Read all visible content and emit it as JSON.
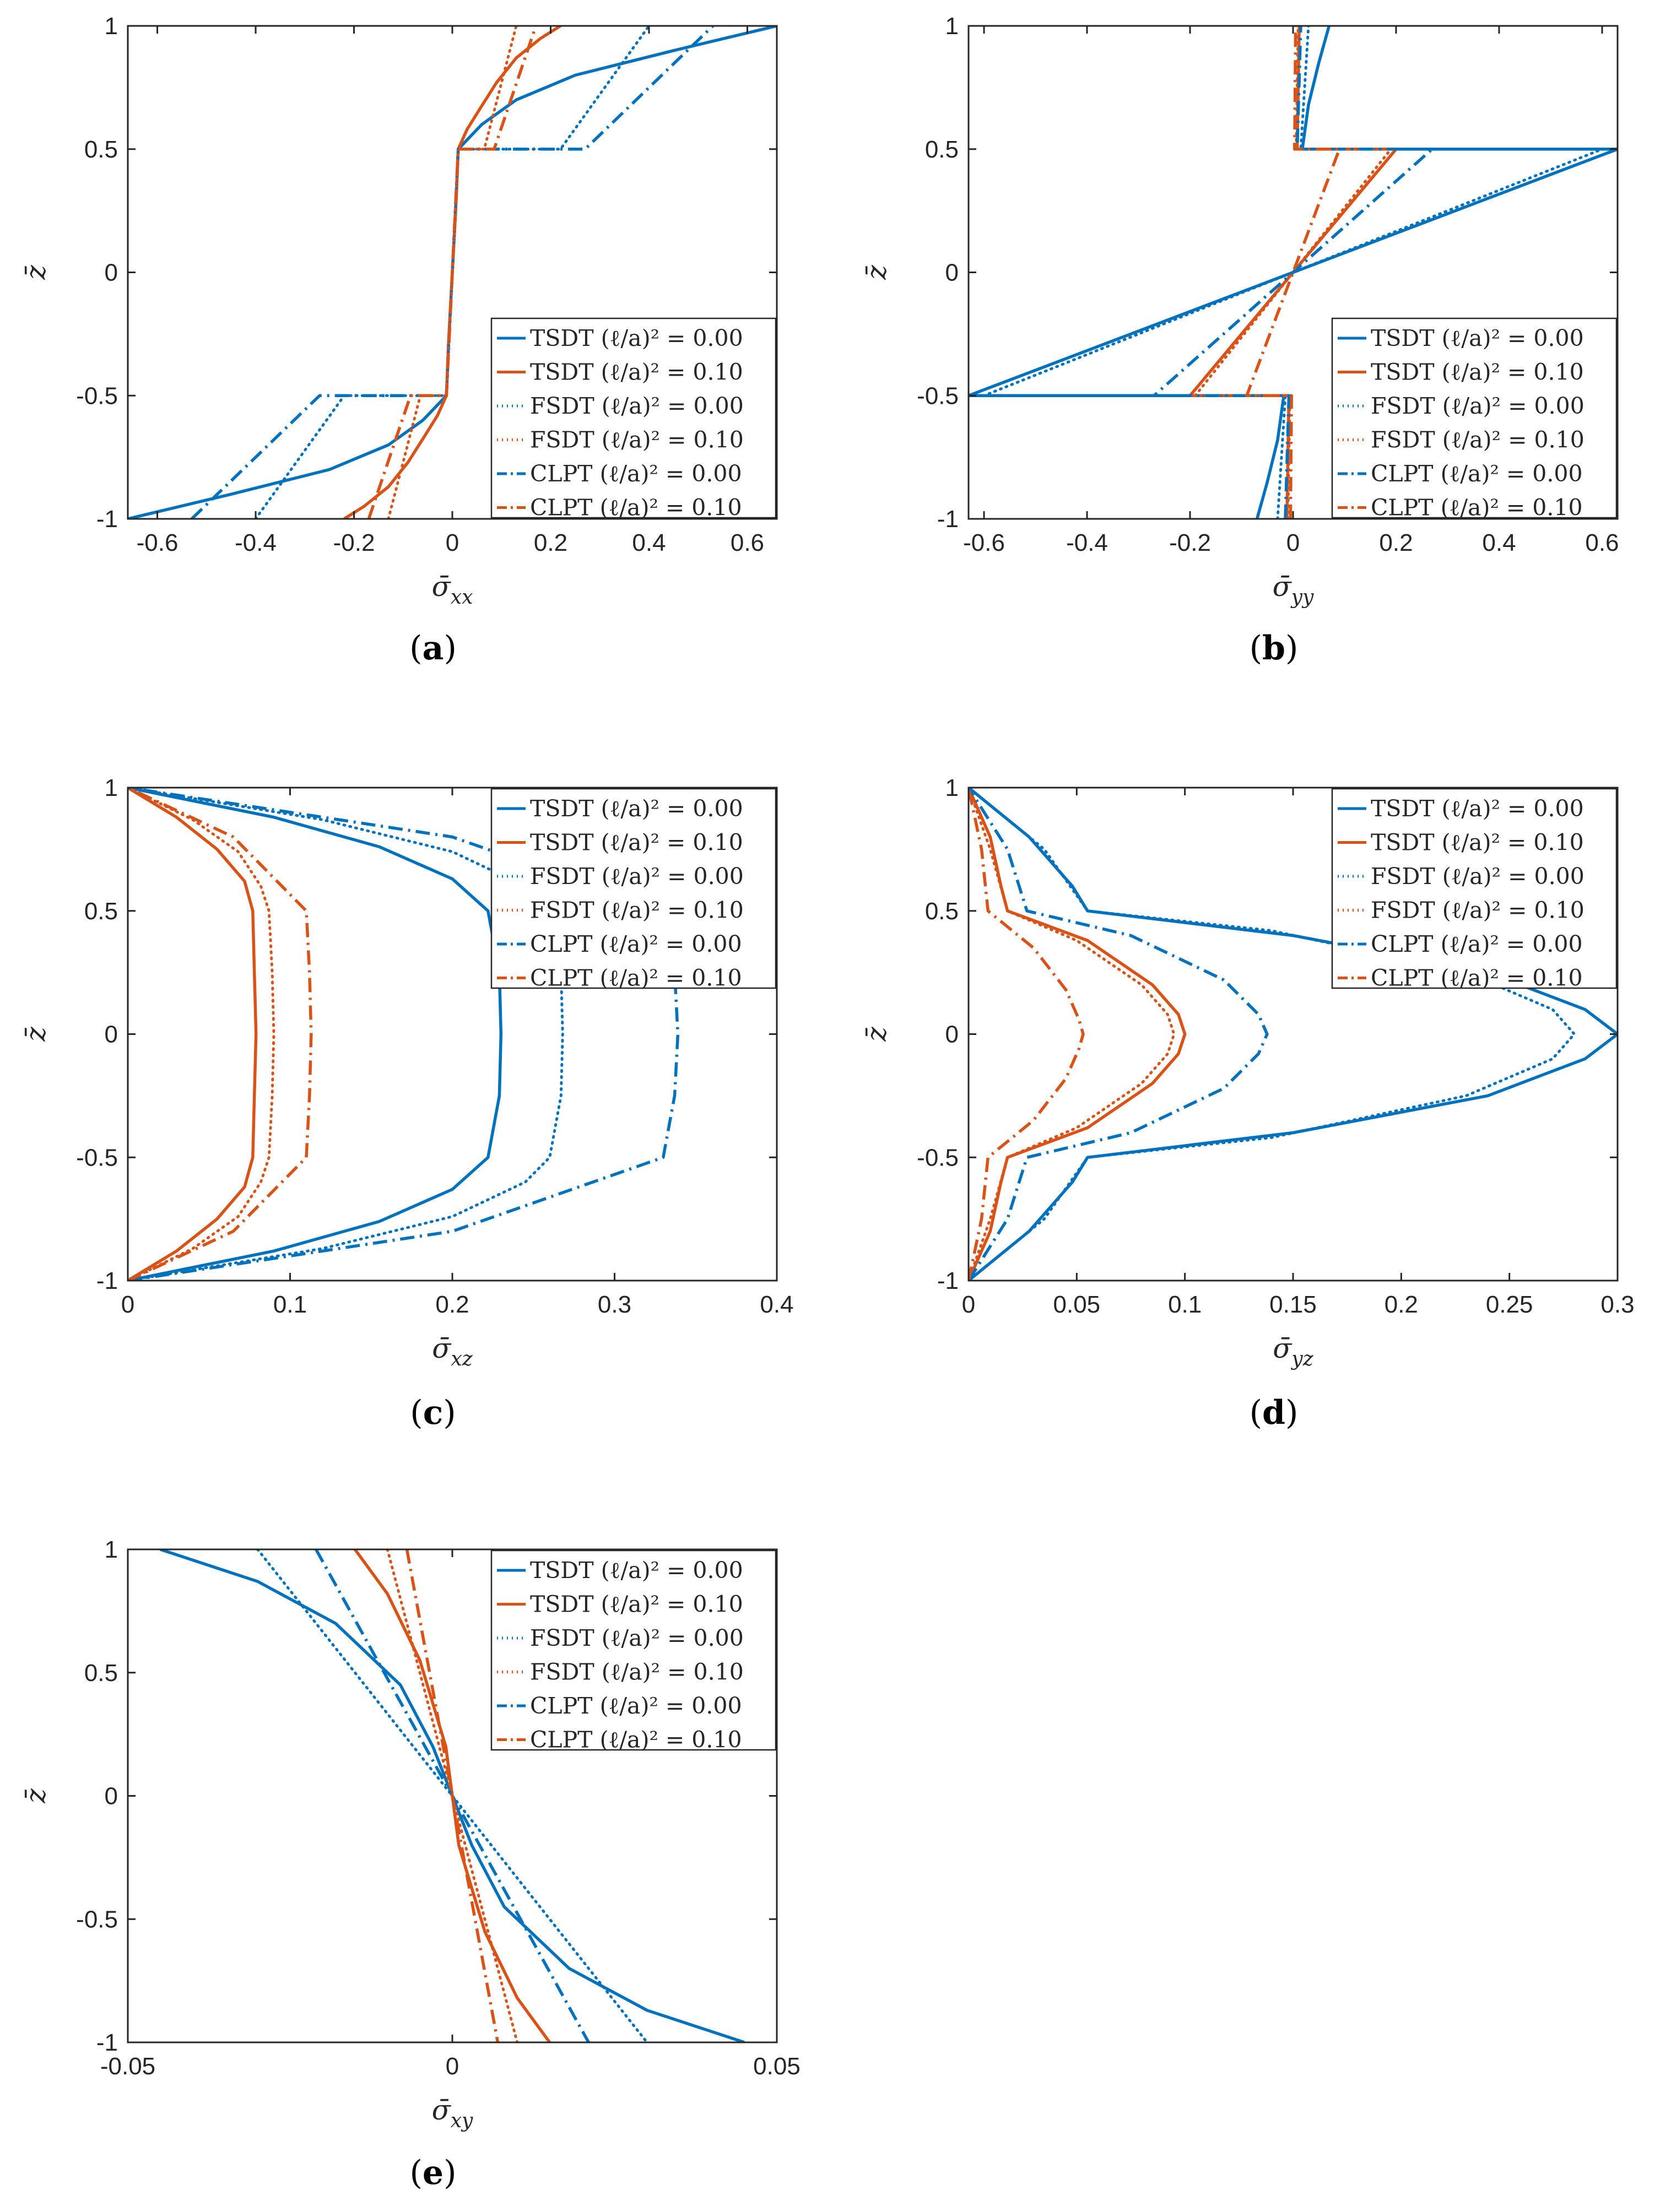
{
  "figure": {
    "background": "#ffffff"
  },
  "colors": {
    "blue": "#0072BD",
    "orange": "#D95319",
    "axis": "#262626"
  },
  "legend_entries": [
    "TSDT (ℓ/a)² = 0.00",
    "TSDT (ℓ/a)² = 0.10",
    "FSDT (ℓ/a)² = 0.00",
    "FSDT (ℓ/a)² = 0.10",
    "CLPT (ℓ/a)² = 0.00",
    "CLPT (ℓ/a)² = 0.10"
  ],
  "chart_data": [
    {
      "id": "a",
      "type": "line",
      "panel_label": "a",
      "xlabel": "σ̄",
      "xlabel_sub": "xx",
      "ylabel": "z̄",
      "xlim": [
        -0.66,
        0.66
      ],
      "ylim": [
        -1,
        1
      ],
      "xticks": [
        -0.6,
        -0.4,
        -0.2,
        0,
        0.2,
        0.4,
        0.6
      ],
      "xtick_labels": [
        "-0.6",
        "-0.4",
        "-0.2",
        "0",
        "0.2",
        "0.4",
        "0.6"
      ],
      "yticks": [
        -1,
        -0.5,
        0,
        0.5,
        1
      ],
      "ytick_labels": [
        "-1",
        "-0.5",
        "0",
        "0.5",
        "1"
      ],
      "legend_position": "bottom-right",
      "series": [
        {
          "name": "TSDT (ℓ/a)² = 0.00",
          "color": "blue",
          "dash": "solid",
          "x": [
            -0.66,
            -0.45,
            -0.25,
            -0.13,
            -0.06,
            -0.012,
            -0.008,
            -0.004,
            0,
            0.004,
            0.008,
            0.012,
            0.06,
            0.13,
            0.25,
            0.45,
            0.66
          ],
          "y": [
            -1,
            -0.9,
            -0.8,
            -0.7,
            -0.6,
            -0.5,
            -0.3,
            -0.15,
            0,
            0.15,
            0.3,
            0.5,
            0.6,
            0.7,
            0.8,
            0.9,
            1
          ]
        },
        {
          "name": "TSDT (ℓ/a)² = 0.10",
          "color": "orange",
          "dash": "solid",
          "x": [
            -0.22,
            -0.18,
            -0.13,
            -0.09,
            -0.055,
            -0.03,
            -0.012,
            -0.008,
            -0.004,
            0,
            0.004,
            0.008,
            0.012,
            0.03,
            0.055,
            0.09,
            0.13,
            0.18,
            0.22
          ],
          "y": [
            -1,
            -0.95,
            -0.87,
            -0.77,
            -0.66,
            -0.58,
            -0.5,
            -0.3,
            -0.15,
            0,
            0.15,
            0.3,
            0.5,
            0.58,
            0.66,
            0.77,
            0.87,
            0.95,
            1
          ]
        },
        {
          "name": "FSDT (ℓ/a)² = 0.00",
          "color": "blue",
          "dash": "dot",
          "x": [
            -0.4,
            -0.22,
            -0.012,
            0,
            0.012,
            0.22,
            0.4
          ],
          "y": [
            -1,
            -0.5,
            -0.5,
            0,
            0.5,
            0.5,
            1
          ]
        },
        {
          "name": "FSDT (ℓ/a)² = 0.10",
          "color": "orange",
          "dash": "dot",
          "x": [
            -0.13,
            -0.065,
            -0.012,
            0,
            0.012,
            0.065,
            0.13
          ],
          "y": [
            -1,
            -0.5,
            -0.5,
            0,
            0.5,
            0.5,
            1
          ]
        },
        {
          "name": "CLPT (ℓ/a)² = 0.00",
          "color": "blue",
          "dash": "dashdot",
          "x": [
            -0.53,
            -0.27,
            -0.012,
            0,
            0.012,
            0.27,
            0.53
          ],
          "y": [
            -1,
            -0.5,
            -0.5,
            0,
            0.5,
            0.5,
            1
          ]
        },
        {
          "name": "CLPT (ℓ/a)² = 0.10",
          "color": "orange",
          "dash": "dashdot",
          "x": [
            -0.17,
            -0.085,
            -0.012,
            0,
            0.012,
            0.085,
            0.17
          ],
          "y": [
            -1,
            -0.5,
            -0.5,
            0,
            0.5,
            0.5,
            1
          ]
        }
      ]
    },
    {
      "id": "b",
      "type": "line",
      "panel_label": "b",
      "xlabel": "σ̄",
      "xlabel_sub": "yy",
      "ylabel": "z̄",
      "xlim": [
        -0.63,
        0.63
      ],
      "ylim": [
        -1,
        1
      ],
      "xticks": [
        -0.6,
        -0.4,
        -0.2,
        0,
        0.2,
        0.4,
        0.6
      ],
      "xtick_labels": [
        "-0.6",
        "-0.4",
        "-0.2",
        "0",
        "0.2",
        "0.4",
        "0.6"
      ],
      "yticks": [
        -1,
        -0.5,
        0,
        0.5,
        1
      ],
      "ytick_labels": [
        "-1",
        "-0.5",
        "0",
        "0.5",
        "1"
      ],
      "legend_position": "bottom-right",
      "series": [
        {
          "name": "TSDT (ℓ/a)² = 0.00",
          "color": "blue",
          "dash": "solid",
          "x": [
            -0.07,
            -0.05,
            -0.03,
            -0.018,
            -0.63,
            0,
            0.63,
            0.018,
            0.03,
            0.05,
            0.07
          ],
          "y": [
            -1,
            -0.85,
            -0.68,
            -0.5,
            -0.5,
            0,
            0.5,
            0.5,
            0.68,
            0.85,
            1
          ]
        },
        {
          "name": "TSDT (ℓ/a)² = 0.10",
          "color": "orange",
          "dash": "solid",
          "x": [
            -0.012,
            -0.008,
            -0.2,
            0,
            0.2,
            0.008,
            0.012
          ],
          "y": [
            -1,
            -0.5,
            -0.5,
            0,
            0.5,
            0.5,
            1
          ]
        },
        {
          "name": "FSDT (ℓ/a)² = 0.00",
          "color": "blue",
          "dash": "dot",
          "x": [
            -0.03,
            -0.015,
            -0.6,
            0,
            0.6,
            0.015,
            0.03
          ],
          "y": [
            -1,
            -0.5,
            -0.5,
            0,
            0.5,
            0.5,
            1
          ]
        },
        {
          "name": "FSDT (ℓ/a)² = 0.10",
          "color": "orange",
          "dash": "dot",
          "x": [
            -0.01,
            -0.006,
            -0.19,
            0,
            0.19,
            0.006,
            0.01
          ],
          "y": [
            -1,
            -0.5,
            -0.5,
            0,
            0.5,
            0.5,
            1
          ]
        },
        {
          "name": "CLPT (ℓ/a)² = 0.00",
          "color": "blue",
          "dash": "dashdot",
          "x": [
            -0.015,
            -0.008,
            -0.27,
            0,
            0.27,
            0.008,
            0.015
          ],
          "y": [
            -1,
            -0.5,
            -0.5,
            0,
            0.5,
            0.5,
            1
          ]
        },
        {
          "name": "CLPT (ℓ/a)² = 0.10",
          "color": "orange",
          "dash": "dashdot",
          "x": [
            -0.005,
            -0.003,
            -0.09,
            0,
            0.09,
            0.003,
            0.005
          ],
          "y": [
            -1,
            -0.5,
            -0.5,
            0,
            0.5,
            0.5,
            1
          ]
        }
      ]
    },
    {
      "id": "c",
      "type": "line",
      "panel_label": "c",
      "xlabel": "σ̄",
      "xlabel_sub": "xz",
      "ylabel": "z̄",
      "xlim": [
        0,
        0.4
      ],
      "ylim": [
        -1,
        1
      ],
      "xticks": [
        0,
        0.1,
        0.2,
        0.3,
        0.4
      ],
      "xtick_labels": [
        "0",
        "0.1",
        "0.2",
        "0.3",
        "0.4"
      ],
      "yticks": [
        -1,
        -0.5,
        0,
        0.5,
        1
      ],
      "ytick_labels": [
        "-1",
        "-0.5",
        "0",
        "0.5",
        "1"
      ],
      "legend_position": "top-right",
      "series": [
        {
          "name": "TSDT (ℓ/a)² = 0.00",
          "color": "blue",
          "dash": "solid",
          "x": [
            0,
            0.09,
            0.155,
            0.2,
            0.222,
            0.229,
            0.23,
            0.229,
            0.222,
            0.2,
            0.155,
            0.09,
            0
          ],
          "y": [
            -1,
            -0.88,
            -0.76,
            -0.63,
            -0.5,
            -0.25,
            0,
            0.25,
            0.5,
            0.63,
            0.76,
            0.88,
            1
          ]
        },
        {
          "name": "TSDT (ℓ/a)² = 0.10",
          "color": "orange",
          "dash": "solid",
          "x": [
            0,
            0.03,
            0.055,
            0.072,
            0.077,
            0.078,
            0.079,
            0.078,
            0.077,
            0.072,
            0.055,
            0.03,
            0
          ],
          "y": [
            -1,
            -0.88,
            -0.75,
            -0.62,
            -0.5,
            -0.25,
            0,
            0.25,
            0.5,
            0.62,
            0.75,
            0.88,
            1
          ]
        },
        {
          "name": "FSDT (ℓ/a)² = 0.00",
          "color": "blue",
          "dash": "dot",
          "x": [
            0,
            0.12,
            0.2,
            0.245,
            0.26,
            0.267,
            0.268,
            0.267,
            0.26,
            0.245,
            0.2,
            0.12,
            0
          ],
          "y": [
            -1,
            -0.87,
            -0.74,
            -0.6,
            -0.5,
            -0.25,
            0,
            0.25,
            0.5,
            0.6,
            0.74,
            0.87,
            1
          ]
        },
        {
          "name": "FSDT (ℓ/a)² = 0.10",
          "color": "orange",
          "dash": "dot",
          "x": [
            0,
            0.04,
            0.068,
            0.082,
            0.087,
            0.089,
            0.09,
            0.089,
            0.087,
            0.082,
            0.068,
            0.04,
            0
          ],
          "y": [
            -1,
            -0.87,
            -0.74,
            -0.6,
            -0.5,
            -0.25,
            0,
            0.25,
            0.5,
            0.6,
            0.74,
            0.87,
            1
          ]
        },
        {
          "name": "CLPT (ℓ/a)² = 0.00",
          "color": "blue",
          "dash": "dashdot",
          "x": [
            0,
            0.2,
            0.33,
            0.337,
            0.339,
            0.337,
            0.33,
            0.2,
            0
          ],
          "y": [
            -1,
            -0.8,
            -0.5,
            -0.25,
            0,
            0.25,
            0.5,
            0.8,
            1
          ]
        },
        {
          "name": "CLPT (ℓ/a)² = 0.10",
          "color": "orange",
          "dash": "dashdot",
          "x": [
            0,
            0.065,
            0.11,
            0.112,
            0.113,
            0.112,
            0.11,
            0.065,
            0
          ],
          "y": [
            -1,
            -0.8,
            -0.5,
            -0.25,
            0,
            0.25,
            0.5,
            0.8,
            1
          ]
        }
      ]
    },
    {
      "id": "d",
      "type": "line",
      "panel_label": "d",
      "xlabel": "σ̄",
      "xlabel_sub": "yz",
      "ylabel": "z̄",
      "xlim": [
        0,
        0.3
      ],
      "ylim": [
        -1,
        1
      ],
      "xticks": [
        0,
        0.05,
        0.1,
        0.15,
        0.2,
        0.25,
        0.3
      ],
      "xtick_labels": [
        "0",
        "0.05",
        "0.1",
        "0.15",
        "0.2",
        "0.25",
        "0.3"
      ],
      "yticks": [
        -1,
        -0.5,
        0,
        0.5,
        1
      ],
      "ytick_labels": [
        "-1",
        "-0.5",
        "0",
        "0.5",
        "1"
      ],
      "legend_position": "top-right",
      "series": [
        {
          "name": "TSDT (ℓ/a)² = 0.00",
          "color": "blue",
          "dash": "solid",
          "x": [
            0,
            0.028,
            0.048,
            0.055,
            0.15,
            0.24,
            0.285,
            0.3,
            0.285,
            0.24,
            0.15,
            0.055,
            0.048,
            0.028,
            0
          ],
          "y": [
            -1,
            -0.8,
            -0.6,
            -0.5,
            -0.4,
            -0.25,
            -0.1,
            0,
            0.1,
            0.25,
            0.4,
            0.5,
            0.6,
            0.8,
            1
          ]
        },
        {
          "name": "TSDT (ℓ/a)² = 0.10",
          "color": "orange",
          "dash": "solid",
          "x": [
            0,
            0.01,
            0.015,
            0.018,
            0.055,
            0.085,
            0.097,
            0.1,
            0.097,
            0.085,
            0.055,
            0.018,
            0.015,
            0.01,
            0
          ],
          "y": [
            -1,
            -0.8,
            -0.6,
            -0.5,
            -0.38,
            -0.2,
            -0.08,
            0,
            0.08,
            0.2,
            0.38,
            0.5,
            0.6,
            0.8,
            1
          ]
        },
        {
          "name": "FSDT (ℓ/a)² = 0.00",
          "color": "blue",
          "dash": "dot",
          "x": [
            0,
            0.035,
            0.055,
            0.14,
            0.23,
            0.27,
            0.28,
            0.27,
            0.23,
            0.14,
            0.055,
            0.035,
            0
          ],
          "y": [
            -1,
            -0.75,
            -0.5,
            -0.42,
            -0.25,
            -0.1,
            0,
            0.1,
            0.25,
            0.42,
            0.5,
            0.75,
            1
          ]
        },
        {
          "name": "FSDT (ℓ/a)² = 0.10",
          "color": "orange",
          "dash": "dot",
          "x": [
            0,
            0.01,
            0.018,
            0.05,
            0.08,
            0.092,
            0.095,
            0.092,
            0.08,
            0.05,
            0.018,
            0.01,
            0
          ],
          "y": [
            -1,
            -0.75,
            -0.5,
            -0.38,
            -0.2,
            -0.08,
            0,
            0.08,
            0.2,
            0.38,
            0.5,
            0.75,
            1
          ]
        },
        {
          "name": "CLPT (ℓ/a)² = 0.00",
          "color": "blue",
          "dash": "dashdot",
          "x": [
            0,
            0.018,
            0.027,
            0.075,
            0.118,
            0.134,
            0.138,
            0.134,
            0.118,
            0.075,
            0.027,
            0.018,
            0
          ],
          "y": [
            -1,
            -0.75,
            -0.5,
            -0.4,
            -0.22,
            -0.08,
            0,
            0.08,
            0.22,
            0.4,
            0.5,
            0.75,
            1
          ]
        },
        {
          "name": "CLPT (ℓ/a)² = 0.10",
          "color": "orange",
          "dash": "dashdot",
          "x": [
            0,
            0.006,
            0.009,
            0.03,
            0.045,
            0.051,
            0.053,
            0.051,
            0.045,
            0.03,
            0.009,
            0.006,
            0
          ],
          "y": [
            -1,
            -0.75,
            -0.5,
            -0.35,
            -0.18,
            -0.06,
            0,
            0.06,
            0.18,
            0.35,
            0.5,
            0.75,
            1
          ]
        }
      ]
    },
    {
      "id": "e",
      "type": "line",
      "panel_label": "e",
      "xlabel": "σ̄",
      "xlabel_sub": "xy",
      "ylabel": "z̄",
      "xlim": [
        -0.05,
        0.05
      ],
      "ylim": [
        -1,
        1
      ],
      "xticks": [
        -0.05,
        0,
        0.05
      ],
      "xtick_labels": [
        "-0.05",
        "0",
        "0.05"
      ],
      "yticks": [
        -1,
        -0.5,
        0,
        0.5,
        1
      ],
      "ytick_labels": [
        "-1",
        "-0.5",
        "0",
        "0.5",
        "1"
      ],
      "legend_position": "top-right",
      "series": [
        {
          "name": "TSDT (ℓ/a)² = 0.00",
          "color": "blue",
          "dash": "solid",
          "x": [
            -0.045,
            -0.03,
            -0.018,
            -0.008,
            -0.003,
            0,
            0.003,
            0.008,
            0.018,
            0.03,
            0.045
          ],
          "y": [
            1,
            0.87,
            0.7,
            0.45,
            0.2,
            0,
            -0.2,
            -0.45,
            -0.7,
            -0.87,
            -1
          ]
        },
        {
          "name": "TSDT (ℓ/a)² = 0.10",
          "color": "orange",
          "dash": "solid",
          "x": [
            -0.015,
            -0.01,
            -0.005,
            -0.001,
            0,
            0.001,
            0.005,
            0.01,
            0.015
          ],
          "y": [
            1,
            0.82,
            0.55,
            0.2,
            0,
            -0.2,
            -0.55,
            -0.82,
            -1
          ]
        },
        {
          "name": "FSDT (ℓ/a)² = 0.00",
          "color": "blue",
          "dash": "dot",
          "x": [
            -0.03,
            0,
            0.03
          ],
          "y": [
            1,
            0,
            -1
          ]
        },
        {
          "name": "FSDT (ℓ/a)² = 0.10",
          "color": "orange",
          "dash": "dot",
          "x": [
            -0.01,
            0,
            0.01
          ],
          "y": [
            1,
            0,
            -1
          ]
        },
        {
          "name": "CLPT (ℓ/a)² = 0.00",
          "color": "blue",
          "dash": "dashdot",
          "x": [
            -0.021,
            0,
            0.021
          ],
          "y": [
            1,
            0,
            -1
          ]
        },
        {
          "name": "CLPT (ℓ/a)² = 0.10",
          "color": "orange",
          "dash": "dashdot",
          "x": [
            -0.007,
            0,
            0.007
          ],
          "y": [
            1,
            0,
            -1
          ]
        }
      ]
    }
  ]
}
